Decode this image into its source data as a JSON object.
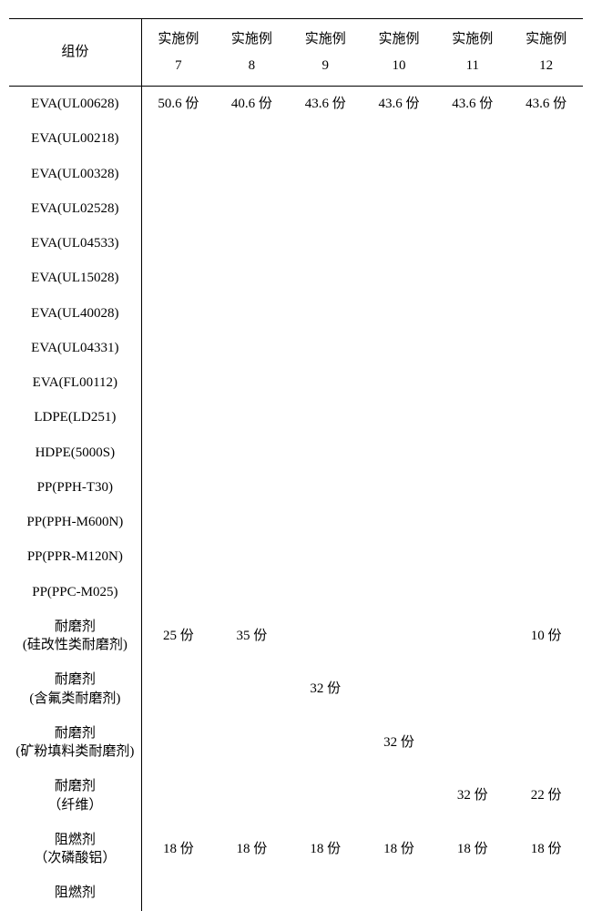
{
  "table": {
    "header_row1": "组份",
    "col_headers": [
      {
        "l1": "实施例",
        "l2": "7"
      },
      {
        "l1": "实施例",
        "l2": "8"
      },
      {
        "l1": "实施例",
        "l2": "9"
      },
      {
        "l1": "实施例",
        "l2": "10"
      },
      {
        "l1": "实施例",
        "l2": "11"
      },
      {
        "l1": "实施例",
        "l2": "12"
      }
    ],
    "rows": [
      {
        "label_l1": "EVA(UL00628)",
        "label_l2": "",
        "cells": [
          "50.6 份",
          "40.6 份",
          "43.6 份",
          "43.6 份",
          "43.6 份",
          "43.6 份"
        ]
      },
      {
        "label_l1": "EVA(UL00218)",
        "label_l2": "",
        "cells": [
          "",
          "",
          "",
          "",
          "",
          ""
        ]
      },
      {
        "label_l1": "EVA(UL00328)",
        "label_l2": "",
        "cells": [
          "",
          "",
          "",
          "",
          "",
          ""
        ]
      },
      {
        "label_l1": "EVA(UL02528)",
        "label_l2": "",
        "cells": [
          "",
          "",
          "",
          "",
          "",
          ""
        ]
      },
      {
        "label_l1": "EVA(UL04533)",
        "label_l2": "",
        "cells": [
          "",
          "",
          "",
          "",
          "",
          ""
        ]
      },
      {
        "label_l1": "EVA(UL15028)",
        "label_l2": "",
        "cells": [
          "",
          "",
          "",
          "",
          "",
          ""
        ]
      },
      {
        "label_l1": "EVA(UL40028)",
        "label_l2": "",
        "cells": [
          "",
          "",
          "",
          "",
          "",
          ""
        ]
      },
      {
        "label_l1": "EVA(UL04331)",
        "label_l2": "",
        "cells": [
          "",
          "",
          "",
          "",
          "",
          ""
        ]
      },
      {
        "label_l1": "EVA(FL00112)",
        "label_l2": "",
        "cells": [
          "",
          "",
          "",
          "",
          "",
          ""
        ]
      },
      {
        "label_l1": "LDPE(LD251)",
        "label_l2": "",
        "cells": [
          "",
          "",
          "",
          "",
          "",
          ""
        ]
      },
      {
        "label_l1": "HDPE(5000S)",
        "label_l2": "",
        "cells": [
          "",
          "",
          "",
          "",
          "",
          ""
        ]
      },
      {
        "label_l1": "PP(PPH-T30)",
        "label_l2": "",
        "cells": [
          "",
          "",
          "",
          "",
          "",
          ""
        ]
      },
      {
        "label_l1": "PP(PPH-M600N)",
        "label_l2": "",
        "cells": [
          "",
          "",
          "",
          "",
          "",
          ""
        ]
      },
      {
        "label_l1": "PP(PPR-M120N)",
        "label_l2": "",
        "cells": [
          "",
          "",
          "",
          "",
          "",
          ""
        ]
      },
      {
        "label_l1": "PP(PPC-M025)",
        "label_l2": "",
        "cells": [
          "",
          "",
          "",
          "",
          "",
          ""
        ]
      },
      {
        "label_l1": "耐磨剂",
        "label_l2": "(硅改性类耐磨剂)",
        "cells": [
          "25 份",
          "35 份",
          "",
          "",
          "",
          "10 份"
        ]
      },
      {
        "label_l1": "耐磨剂",
        "label_l2": "(含氟类耐磨剂)",
        "cells": [
          "",
          "",
          "32 份",
          "",
          "",
          ""
        ]
      },
      {
        "label_l1": "耐磨剂",
        "label_l2": "(矿粉填料类耐磨剂)",
        "cells": [
          "",
          "",
          "",
          "32 份",
          "",
          ""
        ]
      },
      {
        "label_l1": "耐磨剂",
        "label_l2": "（纤维）",
        "cells": [
          "",
          "",
          "",
          "",
          "32 份",
          "22 份"
        ]
      },
      {
        "label_l1": "阻燃剂",
        "label_l2": "（次磷酸铝）",
        "cells": [
          "18 份",
          "18 份",
          "18 份",
          "18 份",
          "18 份",
          "18 份"
        ]
      },
      {
        "label_l1": "阻燃剂",
        "label_l2": "",
        "cells": [
          "",
          "",
          "",
          "",
          "",
          ""
        ]
      }
    ]
  },
  "style": {
    "background_color": "#ffffff",
    "text_color": "#000000",
    "border_color": "#000000",
    "font_family": "SimSun",
    "font_size": 15,
    "border_width": 1.5,
    "n_data_cols": 6
  }
}
